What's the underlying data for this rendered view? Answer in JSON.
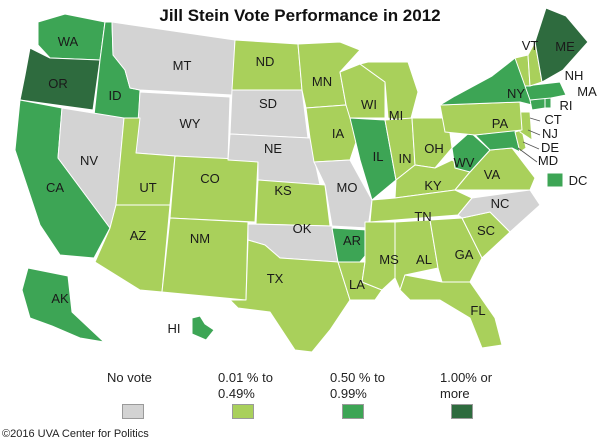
{
  "title": "Jill Stein Vote Performance in 2012",
  "colors": {
    "none": "#d3d3d3",
    "low": "#a9d05b",
    "mid": "#3da555",
    "high": "#2e6b3e",
    "border": "#ffffff"
  },
  "legend": [
    {
      "label": "No vote",
      "category": "none"
    },
    {
      "label": "0.01 % to 0.49%",
      "category": "low"
    },
    {
      "label": "0.50 % to 0.99%",
      "category": "mid"
    },
    {
      "label": "1.00% or more",
      "category": "high"
    }
  ],
  "states": [
    {
      "abbr": "WA",
      "category": "mid"
    },
    {
      "abbr": "OR",
      "category": "high"
    },
    {
      "abbr": "CA",
      "category": "mid"
    },
    {
      "abbr": "ID",
      "category": "mid"
    },
    {
      "abbr": "NV",
      "category": "none"
    },
    {
      "abbr": "MT",
      "category": "none"
    },
    {
      "abbr": "WY",
      "category": "none"
    },
    {
      "abbr": "UT",
      "category": "low"
    },
    {
      "abbr": "AZ",
      "category": "low"
    },
    {
      "abbr": "CO",
      "category": "low"
    },
    {
      "abbr": "NM",
      "category": "low"
    },
    {
      "abbr": "ND",
      "category": "low"
    },
    {
      "abbr": "SD",
      "category": "none"
    },
    {
      "abbr": "NE",
      "category": "none"
    },
    {
      "abbr": "KS",
      "category": "low"
    },
    {
      "abbr": "OK",
      "category": "none"
    },
    {
      "abbr": "TX",
      "category": "low"
    },
    {
      "abbr": "MN",
      "category": "low"
    },
    {
      "abbr": "IA",
      "category": "low"
    },
    {
      "abbr": "MO",
      "category": "none"
    },
    {
      "abbr": "AR",
      "category": "mid"
    },
    {
      "abbr": "LA",
      "category": "low"
    },
    {
      "abbr": "WI",
      "category": "low"
    },
    {
      "abbr": "IL",
      "category": "mid"
    },
    {
      "abbr": "MI",
      "category": "low"
    },
    {
      "abbr": "IN",
      "category": "low"
    },
    {
      "abbr": "OH",
      "category": "low"
    },
    {
      "abbr": "KY",
      "category": "low"
    },
    {
      "abbr": "TN",
      "category": "low"
    },
    {
      "abbr": "MS",
      "category": "low"
    },
    {
      "abbr": "AL",
      "category": "low"
    },
    {
      "abbr": "GA",
      "category": "low"
    },
    {
      "abbr": "FL",
      "category": "low"
    },
    {
      "abbr": "SC",
      "category": "low"
    },
    {
      "abbr": "NC",
      "category": "none"
    },
    {
      "abbr": "VA",
      "category": "low"
    },
    {
      "abbr": "WV",
      "category": "mid"
    },
    {
      "abbr": "MD",
      "category": "mid"
    },
    {
      "abbr": "DE",
      "category": "low"
    },
    {
      "abbr": "NJ",
      "category": "low"
    },
    {
      "abbr": "PA",
      "category": "low"
    },
    {
      "abbr": "NY",
      "category": "mid"
    },
    {
      "abbr": "CT",
      "category": "mid"
    },
    {
      "abbr": "RI",
      "category": "mid"
    },
    {
      "abbr": "MA",
      "category": "mid"
    },
    {
      "abbr": "VT",
      "category": "low"
    },
    {
      "abbr": "NH",
      "category": "low"
    },
    {
      "abbr": "ME",
      "category": "high"
    },
    {
      "abbr": "AK",
      "category": "mid"
    },
    {
      "abbr": "HI",
      "category": "mid"
    },
    {
      "abbr": "DC",
      "category": "mid"
    }
  ],
  "credit": "©2016 UVA Center for Politics"
}
